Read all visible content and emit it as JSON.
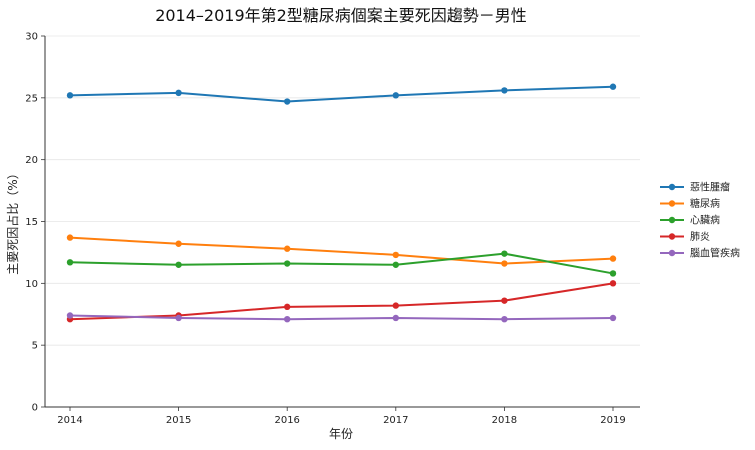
{
  "chart_data": {
    "type": "line",
    "title": "2014–2019年第2型糖尿病個案主要死因趨勢－男性",
    "xlabel": "年份",
    "ylabel": "主要死因占比（%）",
    "categories": [
      "2014",
      "2015",
      "2016",
      "2017",
      "2018",
      "2019"
    ],
    "ylim": [
      0,
      30
    ],
    "yticks": [
      0,
      5,
      10,
      15,
      20,
      25,
      30
    ],
    "grid": true,
    "legend_position": "right",
    "series": [
      {
        "name": "惡性腫瘤",
        "color": "#1f77b4",
        "values": [
          25.2,
          25.4,
          24.7,
          25.2,
          25.6,
          25.9
        ]
      },
      {
        "name": "糖尿病",
        "color": "#ff7f0e",
        "values": [
          13.7,
          13.2,
          12.8,
          12.3,
          11.6,
          12.0
        ]
      },
      {
        "name": "心臟病",
        "color": "#2ca02c",
        "values": [
          11.7,
          11.5,
          11.6,
          11.5,
          12.4,
          10.8
        ]
      },
      {
        "name": "肺炎",
        "color": "#d62728",
        "values": [
          7.1,
          7.4,
          8.1,
          8.2,
          8.6,
          10.0
        ]
      },
      {
        "name": "腦血管疾病",
        "color": "#9467bd",
        "values": [
          7.4,
          7.2,
          7.1,
          7.2,
          7.1,
          7.2
        ]
      }
    ]
  }
}
